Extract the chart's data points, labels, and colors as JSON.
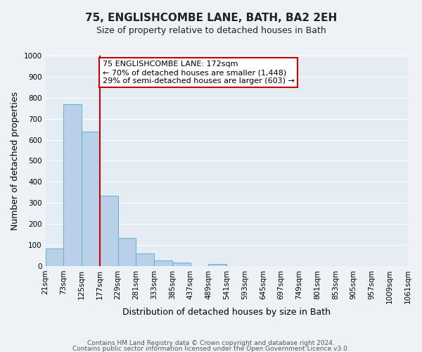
{
  "title": "75, ENGLISHCOMBE LANE, BATH, BA2 2EH",
  "subtitle": "Size of property relative to detached houses in Bath",
  "xlabel": "Distribution of detached houses by size in Bath",
  "ylabel": "Number of detached properties",
  "bar_values": [
    85,
    770,
    640,
    335,
    135,
    60,
    25,
    15,
    0,
    10,
    0,
    0,
    0,
    0,
    0,
    0,
    0,
    0,
    0,
    0
  ],
  "bin_labels": [
    "21sqm",
    "73sqm",
    "125sqm",
    "177sqm",
    "229sqm",
    "281sqm",
    "333sqm",
    "385sqm",
    "437sqm",
    "489sqm",
    "541sqm",
    "593sqm",
    "645sqm",
    "697sqm",
    "749sqm",
    "801sqm",
    "853sqm",
    "905sqm",
    "957sqm",
    "1009sqm",
    "1061sqm"
  ],
  "bar_color": "#b8d0e8",
  "bar_edge_color": "#6aaad4",
  "vline_color": "#cc0000",
  "annotation_text": "75 ENGLISHCOMBE LANE: 172sqm\n← 70% of detached houses are smaller (1,448)\n29% of semi-detached houses are larger (603) →",
  "annotation_box_color": "#ffffff",
  "annotation_box_edge_color": "#cc0000",
  "ylim": [
    0,
    1000
  ],
  "yticks": [
    0,
    100,
    200,
    300,
    400,
    500,
    600,
    700,
    800,
    900,
    1000
  ],
  "footer_line1": "Contains HM Land Registry data © Crown copyright and database right 2024.",
  "footer_line2": "Contains public sector information licensed under the Open Government Licence v3.0.",
  "background_color": "#eef2f7",
  "plot_background": "#e4ecf4",
  "grid_color": "#ffffff",
  "title_fontsize": 11,
  "subtitle_fontsize": 9,
  "xlabel_fontsize": 9,
  "ylabel_fontsize": 9,
  "tick_fontsize": 7.5,
  "footer_fontsize": 6.5,
  "annotation_fontsize": 8
}
